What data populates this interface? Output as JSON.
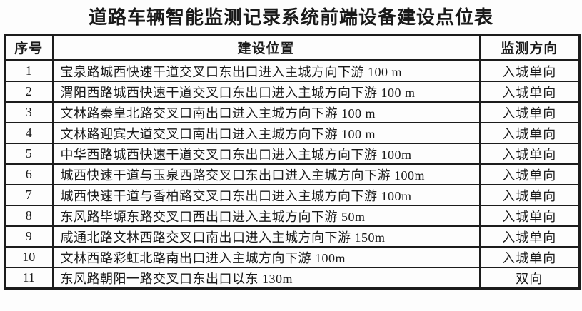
{
  "title": "道路车辆智能监测记录系统前端设备建设点位表",
  "colors": {
    "text": "#1a1a1a",
    "border": "#1c1c1c",
    "background": "#fdfdfd"
  },
  "table": {
    "headers": [
      "序号",
      "建设位置",
      "监测方向"
    ],
    "rows": [
      {
        "no": "1",
        "location": "宝泉路城西快速干道交叉口东出口进入主城方向下游 100 m",
        "direction": "入城单向"
      },
      {
        "no": "2",
        "location": "渭阳西路城西快速干道交叉口东出口进入主城方向下游 100 m",
        "direction": "入城单向"
      },
      {
        "no": "3",
        "location": "文林路秦皇北路交叉口南出口进入主城方向下游 100 m",
        "direction": "入城单向"
      },
      {
        "no": "4",
        "location": "文林路迎宾大道交叉口南出口进入主城方向下游 100 m",
        "direction": "入城单向"
      },
      {
        "no": "5",
        "location": "中华西路城西快速干道交叉口东出口进入主城方向下游 100m",
        "direction": "入城单向"
      },
      {
        "no": "6",
        "location": "城西快速干道与玉泉西路交叉口东出口进入主城方向下游 100m",
        "direction": "入城单向"
      },
      {
        "no": "7",
        "location": "城西快速干道与香柏路交叉口东出口进入主城方向下游 100m",
        "direction": "入城单向"
      },
      {
        "no": "8",
        "location": "东风路毕塬东路交叉口西出口进入主城方向下游 50m",
        "direction": "入城单向"
      },
      {
        "no": "9",
        "location": "咸通北路文林西路交叉口南出口进入主城方向下游 150m",
        "direction": "入城单向"
      },
      {
        "no": "10",
        "location": "文林西路彩虹北路南出口进入主城方向下游 100m",
        "direction": "入城单向"
      },
      {
        "no": "11",
        "location": "东风路朝阳一路交叉口东出口以东 130m",
        "direction": "双向"
      }
    ]
  }
}
